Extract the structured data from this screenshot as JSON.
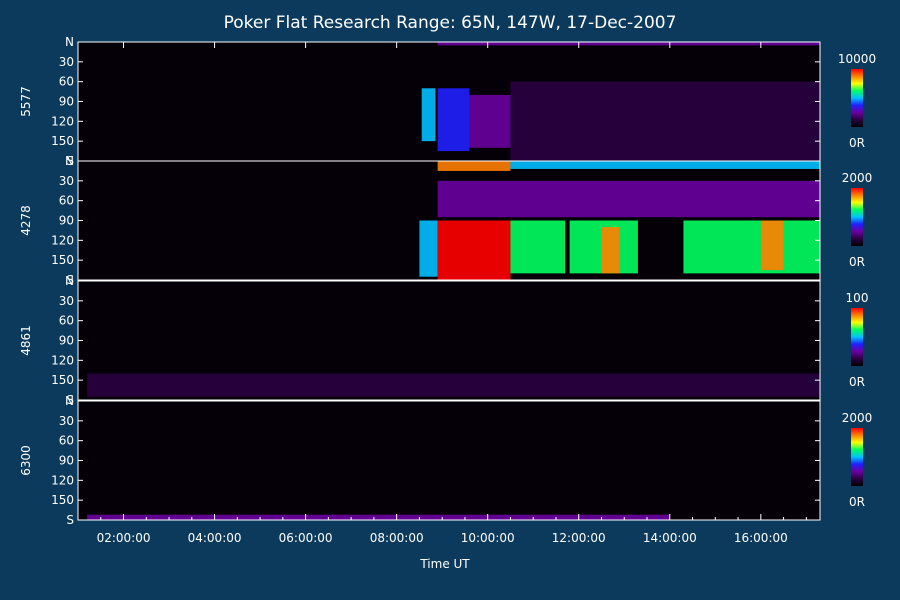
{
  "chart_data": {
    "type": "heatmap",
    "title": "Poker Flat Research Range: 65N, 147W, 17-Dec-2007",
    "xlabel": "Time UT",
    "x_ticks": [
      "02:00:00",
      "04:00:00",
      "06:00:00",
      "08:00:00",
      "10:00:00",
      "12:00:00",
      "14:00:00",
      "16:00:00"
    ],
    "x_range_hours": [
      1.0,
      17.3
    ],
    "y_ticks": [
      "N",
      "30",
      "60",
      "90",
      "120",
      "150",
      "S"
    ],
    "y_range": [
      0,
      180
    ],
    "panels": [
      {
        "name": "5577",
        "cbar_max": "10000",
        "cbar_min": "0R",
        "max_value": 10000,
        "events": [
          {
            "t0": 8.55,
            "t1": 8.85,
            "a0": 70,
            "a1": 150,
            "level": 0.55
          },
          {
            "t0": 8.9,
            "t1": 9.6,
            "a0": 70,
            "a1": 165,
            "level": 0.42
          },
          {
            "t0": 9.6,
            "t1": 10.5,
            "a0": 80,
            "a1": 160,
            "level": 0.28
          },
          {
            "t0": 10.5,
            "t1": 17.3,
            "a0": 60,
            "a1": 180,
            "level": 0.12
          },
          {
            "t0": 8.9,
            "t1": 17.3,
            "a0": 0,
            "a1": 5,
            "level": 0.22
          }
        ]
      },
      {
        "name": "4278",
        "cbar_max": "2000",
        "cbar_min": "0R",
        "max_value": 2000,
        "events": [
          {
            "t0": 8.5,
            "t1": 8.9,
            "a0": 90,
            "a1": 175,
            "level": 0.55
          },
          {
            "t0": 8.9,
            "t1": 10.5,
            "a0": 90,
            "a1": 180,
            "level": 1.0
          },
          {
            "t0": 8.9,
            "t1": 10.5,
            "a0": 0,
            "a1": 15,
            "level": 0.9
          },
          {
            "t0": 10.5,
            "t1": 11.7,
            "a0": 90,
            "a1": 170,
            "level": 0.6
          },
          {
            "t0": 11.8,
            "t1": 13.3,
            "a0": 90,
            "a1": 170,
            "level": 0.62
          },
          {
            "t0": 12.5,
            "t1": 12.9,
            "a0": 100,
            "a1": 170,
            "level": 0.85
          },
          {
            "t0": 14.3,
            "t1": 17.3,
            "a0": 90,
            "a1": 170,
            "level": 0.6
          },
          {
            "t0": 16.0,
            "t1": 16.5,
            "a0": 90,
            "a1": 165,
            "level": 0.85
          },
          {
            "t0": 8.9,
            "t1": 17.3,
            "a0": 30,
            "a1": 85,
            "level": 0.3
          },
          {
            "t0": 10.5,
            "t1": 17.3,
            "a0": 0,
            "a1": 12,
            "level": 0.55
          }
        ]
      },
      {
        "name": "4861",
        "cbar_max": "100",
        "cbar_min": "0R",
        "max_value": 100,
        "events": [
          {
            "t0": 1.2,
            "t1": 17.3,
            "a0": 140,
            "a1": 175,
            "level": 0.15
          }
        ]
      },
      {
        "name": "6300",
        "cbar_max": "2000",
        "cbar_min": "0R",
        "max_value": 2000,
        "events": [
          {
            "t0": 1.2,
            "t1": 14.0,
            "a0": 172,
            "a1": 180,
            "level": 0.2
          }
        ]
      }
    ],
    "colormap": [
      "#000000",
      "#2a0040",
      "#6a00a0",
      "#2020ff",
      "#00c0ff",
      "#00ff60",
      "#ffff00",
      "#ff8000",
      "#ff0000"
    ]
  }
}
